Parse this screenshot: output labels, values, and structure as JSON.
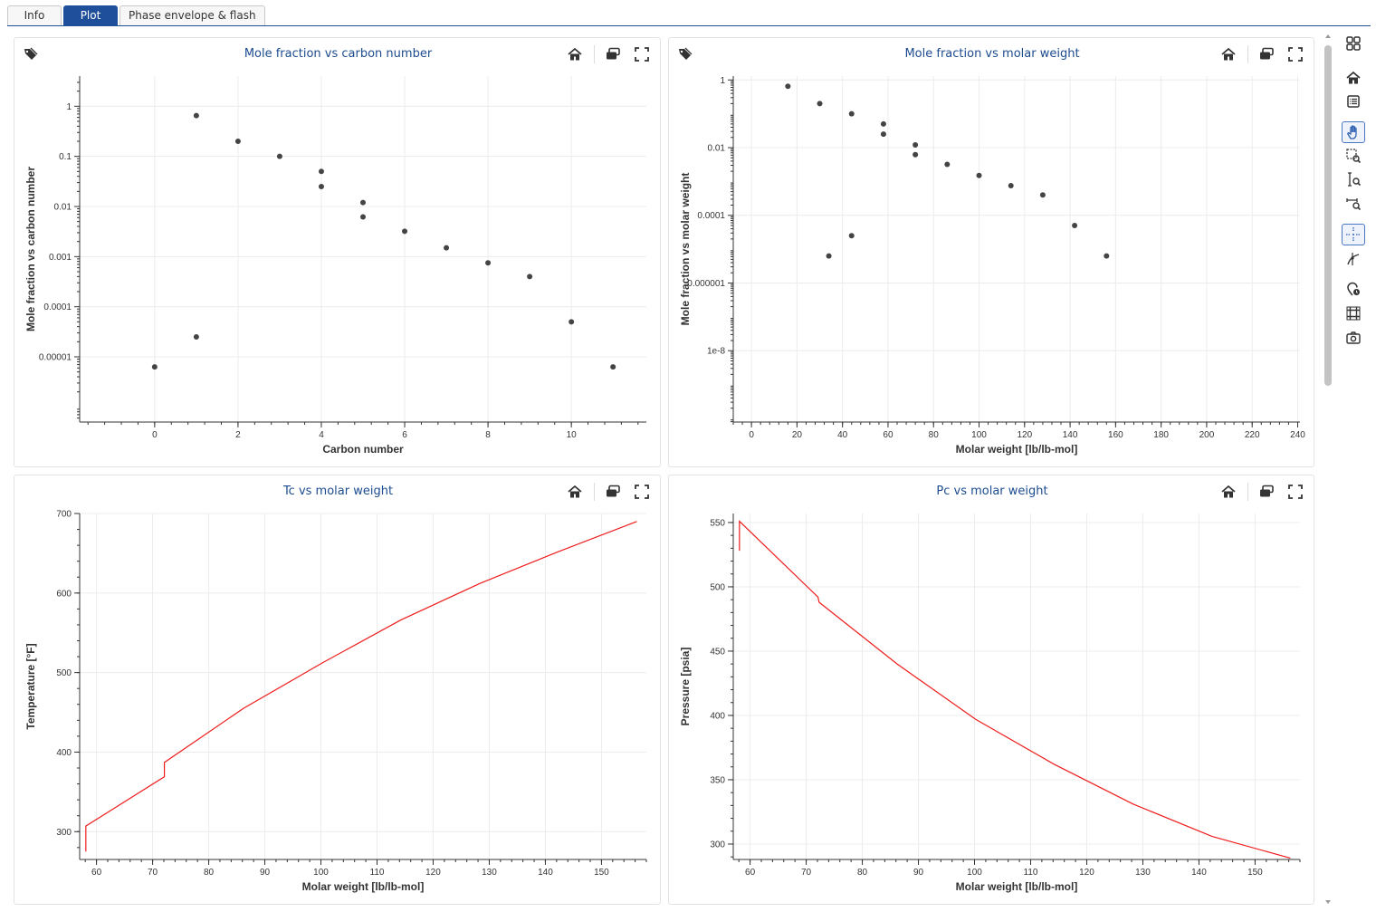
{
  "tabs": [
    {
      "label": "Info",
      "active": false
    },
    {
      "label": "Plot",
      "active": true
    },
    {
      "label": "Phase envelope & flash",
      "active": false
    }
  ],
  "panels": {
    "mf_cn": {
      "title": "Mole fraction vs carbon number"
    },
    "mf_mw": {
      "title": "Mole fraction vs molar weight"
    },
    "tc_mw": {
      "title": "Tc vs molar weight"
    },
    "pc_mw": {
      "title": "Pc vs molar weight"
    }
  },
  "icons": {
    "panel": [
      "tag-icon",
      "home-icon",
      "toggle-icon",
      "fullscreen-icon"
    ],
    "toolbar": [
      "grid-layout-icon",
      "home-icon",
      "list-icon",
      "pan-hand-icon",
      "box-zoom-icon",
      "y-zoom-icon",
      "x-zoom-icon",
      "crosshair-icon",
      "line-hover-icon",
      "pin-clock-icon",
      "grid-icon",
      "camera-icon"
    ]
  },
  "colors": {
    "accent": "#1f4f9b",
    "title": "#1c4b8f",
    "marker": "#444444",
    "line": "#ee1c1c",
    "grid": "#ececec"
  },
  "chart_data": [
    {
      "id": "mf_cn",
      "type": "scatter",
      "title": "Mole fraction vs carbon number",
      "xlabel": "Carbon number",
      "ylabel": "Mole fraction vs carbon number",
      "xlim": [
        -1.8,
        11.8
      ],
      "ylim": [
        5e-07,
        4
      ],
      "yscale": "log",
      "xticks": [
        0,
        2,
        4,
        6,
        8,
        10
      ],
      "xtick_labels": [
        "0",
        "2",
        "4",
        "6",
        "8",
        "10"
      ],
      "yticks": [
        1e-05,
        0.0001,
        0.001,
        0.01,
        0.1,
        1
      ],
      "ytick_labels": [
        "0.00001",
        "0.0001",
        "0.001",
        "0.01",
        "0.1",
        "1"
      ],
      "grid": true,
      "points": [
        [
          0,
          6.3e-06
        ],
        [
          1,
          2.5e-05
        ],
        [
          1,
          0.65
        ],
        [
          2,
          0.2
        ],
        [
          3,
          0.1
        ],
        [
          4,
          0.05
        ],
        [
          4,
          0.025
        ],
        [
          5,
          0.012
        ],
        [
          5,
          0.0062
        ],
        [
          6,
          0.0032
        ],
        [
          7,
          0.0015
        ],
        [
          8,
          0.00075
        ],
        [
          9,
          0.0004
        ],
        [
          10,
          5e-05
        ],
        [
          11,
          6.3e-06
        ]
      ]
    },
    {
      "id": "mf_mw",
      "type": "scatter",
      "title": "Mole fraction vs molar weight",
      "xlabel": "Molar weight [lb/lb-mol]",
      "ylabel": "Mole fraction vs molar weight",
      "xlim": [
        -8,
        241
      ],
      "ylim": [
        7.8e-11,
        1.3
      ],
      "yscale": "log",
      "xticks": [
        0,
        20,
        40,
        60,
        80,
        100,
        120,
        140,
        160,
        180,
        200,
        220,
        240
      ],
      "xtick_labels": [
        "0",
        "20",
        "40",
        "60",
        "80",
        "100",
        "120",
        "140",
        "160",
        "180",
        "200",
        "220",
        "240"
      ],
      "yticks": [
        1e-08,
        1e-06,
        0.0001,
        0.01,
        1
      ],
      "ytick_labels": [
        "1e-8",
        "0.000001",
        "0.0001",
        "0.01",
        "1"
      ],
      "grid": true,
      "points": [
        [
          16,
          0.65
        ],
        [
          30,
          0.2
        ],
        [
          34,
          6.3e-06
        ],
        [
          44,
          0.1
        ],
        [
          44,
          2.5e-05
        ],
        [
          58,
          0.05
        ],
        [
          58,
          0.025
        ],
        [
          72,
          0.012
        ],
        [
          72,
          0.0062
        ],
        [
          86,
          0.0032
        ],
        [
          100,
          0.0015
        ],
        [
          114,
          0.00075
        ],
        [
          128,
          0.0004
        ],
        [
          142,
          5e-05
        ],
        [
          156,
          6.3e-06
        ]
      ]
    },
    {
      "id": "tc_mw",
      "type": "line",
      "title": "Tc vs molar weight",
      "xlabel": "Molar weight [lb/lb-mol]",
      "ylabel": "Temperature [°F]",
      "xlim": [
        57,
        158
      ],
      "ylim": [
        265,
        700
      ],
      "xticks": [
        60,
        70,
        80,
        90,
        100,
        110,
        120,
        130,
        140,
        150
      ],
      "xtick_labels": [
        "60",
        "70",
        "80",
        "90",
        "100",
        "110",
        "120",
        "130",
        "140",
        "150"
      ],
      "yticks": [
        300,
        400,
        500,
        600,
        700
      ],
      "ytick_labels": [
        "300",
        "400",
        "500",
        "600",
        "700"
      ],
      "grid": true,
      "x": [
        58.1,
        58.1,
        72.1,
        72.1,
        86.2,
        100.2,
        114.2,
        128.3,
        142.3,
        156.3
      ],
      "y": [
        275,
        307,
        369,
        387,
        455,
        512,
        566,
        612,
        652,
        690
      ]
    },
    {
      "id": "pc_mw",
      "type": "line",
      "title": "Pc vs molar weight",
      "xlabel": "Molar weight [lb/lb-mol]",
      "ylabel": "Pressure [psia]",
      "xlim": [
        57,
        158
      ],
      "ylim": [
        288,
        557
      ],
      "xticks": [
        60,
        70,
        80,
        90,
        100,
        110,
        120,
        130,
        140,
        150
      ],
      "xtick_labels": [
        "60",
        "70",
        "80",
        "90",
        "100",
        "110",
        "120",
        "130",
        "140",
        "150"
      ],
      "yticks": [
        300,
        350,
        400,
        450,
        500,
        550
      ],
      "ytick_labels": [
        "300",
        "350",
        "400",
        "450",
        "500",
        "550"
      ],
      "grid": true,
      "x": [
        58.1,
        58.1,
        72.1,
        72.3,
        86.2,
        100.2,
        114.2,
        128.3,
        142.3,
        156.3
      ],
      "y": [
        528,
        551,
        492,
        488,
        440,
        397,
        362,
        331,
        306,
        289
      ]
    }
  ]
}
